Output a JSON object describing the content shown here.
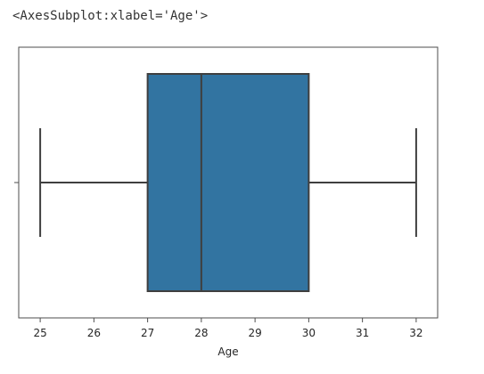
{
  "output": {
    "repr": "<AxesSubplot:xlabel='Age'>"
  },
  "colors": {
    "box_fill": "#3274a1",
    "line": "#3f3f3f",
    "spine": "#4d4d4d",
    "text": "#262626"
  },
  "chart_data": {
    "type": "box",
    "orient": "horizontal",
    "xlabel": "Age",
    "ylabel": "",
    "xlim": [
      24.6,
      32.4
    ],
    "xticks": [
      25,
      26,
      27,
      28,
      29,
      30,
      31,
      32
    ],
    "xtick_labels": [
      "25",
      "26",
      "27",
      "28",
      "29",
      "30",
      "31",
      "32"
    ],
    "grid": false,
    "stats": {
      "whisker_low": 25,
      "q1": 27,
      "median": 28,
      "q3": 30,
      "whisker_high": 32
    }
  }
}
